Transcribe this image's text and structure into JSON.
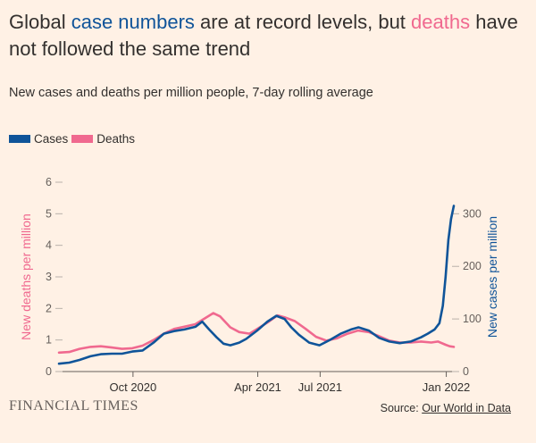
{
  "header": {
    "title_parts": {
      "p1": "Global ",
      "cases": "case numbers",
      "p2": " are at record levels, but ",
      "deaths": "deaths",
      "p3": " have not followed the same trend"
    },
    "subtitle": "New cases and deaths per million people, 7-day rolling average"
  },
  "legend": [
    {
      "label": "Cases",
      "color": "#0f5499"
    },
    {
      "label": "Deaths",
      "color": "#f0698f"
    }
  ],
  "footer": {
    "brand": "FINANCIAL TIMES",
    "source_prefix": "Source: ",
    "source_link": "Our World in Data"
  },
  "chart_data": {
    "type": "line",
    "x_axis": {
      "type": "date",
      "range": [
        "2020-06-15",
        "2022-01-12"
      ],
      "ticks": [
        {
          "date": "2020-10-01",
          "label": "Oct 2020"
        },
        {
          "date": "2021-04-01",
          "label": "Apr 2021"
        },
        {
          "date": "2021-07-01",
          "label": "Jul 2021"
        },
        {
          "date": "2022-01-01",
          "label": "Jan 2022"
        }
      ]
    },
    "y_left": {
      "label": "New deaths per million",
      "range": [
        0,
        6
      ],
      "ticks": [
        0,
        1,
        2,
        3,
        4,
        5,
        6
      ],
      "color": "#f0698f"
    },
    "y_right": {
      "label": "New cases per million",
      "range": [
        0,
        360
      ],
      "ticks": [
        0,
        100,
        200,
        300
      ],
      "color": "#0f5499"
    },
    "grid": false,
    "series": [
      {
        "name": "Cases",
        "axis": "right",
        "color": "#0f5499",
        "points": [
          [
            "2020-06-15",
            15
          ],
          [
            "2020-06-30",
            17
          ],
          [
            "2020-07-15",
            22
          ],
          [
            "2020-07-31",
            29
          ],
          [
            "2020-08-15",
            33
          ],
          [
            "2020-08-31",
            34
          ],
          [
            "2020-09-15",
            34
          ],
          [
            "2020-09-30",
            38
          ],
          [
            "2020-10-15",
            40
          ],
          [
            "2020-10-31",
            55
          ],
          [
            "2020-11-15",
            72
          ],
          [
            "2020-11-30",
            77
          ],
          [
            "2020-12-15",
            80
          ],
          [
            "2020-12-31",
            85
          ],
          [
            "2021-01-10",
            95
          ],
          [
            "2021-01-20",
            80
          ],
          [
            "2021-01-31",
            65
          ],
          [
            "2021-02-10",
            53
          ],
          [
            "2021-02-20",
            50
          ],
          [
            "2021-03-05",
            55
          ],
          [
            "2021-03-15",
            62
          ],
          [
            "2021-03-31",
            78
          ],
          [
            "2021-04-15",
            95
          ],
          [
            "2021-04-28",
            106
          ],
          [
            "2021-05-10",
            100
          ],
          [
            "2021-05-20",
            84
          ],
          [
            "2021-05-31",
            70
          ],
          [
            "2021-06-15",
            55
          ],
          [
            "2021-06-30",
            50
          ],
          [
            "2021-07-15",
            60
          ],
          [
            "2021-07-31",
            72
          ],
          [
            "2021-08-15",
            80
          ],
          [
            "2021-08-26",
            84
          ],
          [
            "2021-09-10",
            78
          ],
          [
            "2021-09-25",
            64
          ],
          [
            "2021-10-10",
            57
          ],
          [
            "2021-10-25",
            54
          ],
          [
            "2021-11-10",
            57
          ],
          [
            "2021-11-25",
            65
          ],
          [
            "2021-12-05",
            72
          ],
          [
            "2021-12-15",
            80
          ],
          [
            "2021-12-22",
            92
          ],
          [
            "2021-12-27",
            125
          ],
          [
            "2021-12-31",
            180
          ],
          [
            "2022-01-04",
            250
          ],
          [
            "2022-01-08",
            290
          ],
          [
            "2022-01-12",
            315
          ]
        ]
      },
      {
        "name": "Deaths",
        "axis": "left",
        "color": "#f0698f",
        "points": [
          [
            "2020-06-15",
            0.6
          ],
          [
            "2020-06-30",
            0.62
          ],
          [
            "2020-07-15",
            0.72
          ],
          [
            "2020-07-31",
            0.78
          ],
          [
            "2020-08-15",
            0.8
          ],
          [
            "2020-08-31",
            0.76
          ],
          [
            "2020-09-15",
            0.72
          ],
          [
            "2020-09-30",
            0.74
          ],
          [
            "2020-10-15",
            0.82
          ],
          [
            "2020-10-31",
            1.0
          ],
          [
            "2020-11-15",
            1.2
          ],
          [
            "2020-11-30",
            1.35
          ],
          [
            "2020-12-15",
            1.42
          ],
          [
            "2020-12-31",
            1.5
          ],
          [
            "2021-01-15",
            1.7
          ],
          [
            "2021-01-26",
            1.85
          ],
          [
            "2021-02-05",
            1.75
          ],
          [
            "2021-02-20",
            1.4
          ],
          [
            "2021-03-05",
            1.25
          ],
          [
            "2021-03-20",
            1.2
          ],
          [
            "2021-03-31",
            1.35
          ],
          [
            "2021-04-15",
            1.55
          ],
          [
            "2021-04-30",
            1.78
          ],
          [
            "2021-05-10",
            1.72
          ],
          [
            "2021-05-25",
            1.6
          ],
          [
            "2021-06-10",
            1.35
          ],
          [
            "2021-06-25",
            1.1
          ],
          [
            "2021-07-10",
            0.98
          ],
          [
            "2021-07-25",
            1.05
          ],
          [
            "2021-08-10",
            1.2
          ],
          [
            "2021-08-25",
            1.3
          ],
          [
            "2021-09-10",
            1.25
          ],
          [
            "2021-09-25",
            1.12
          ],
          [
            "2021-10-10",
            0.98
          ],
          [
            "2021-10-25",
            0.92
          ],
          [
            "2021-11-10",
            0.92
          ],
          [
            "2021-11-25",
            0.95
          ],
          [
            "2021-12-10",
            0.92
          ],
          [
            "2021-12-20",
            0.95
          ],
          [
            "2021-12-31",
            0.85
          ],
          [
            "2022-01-06",
            0.8
          ],
          [
            "2022-01-12",
            0.78
          ]
        ]
      }
    ]
  }
}
